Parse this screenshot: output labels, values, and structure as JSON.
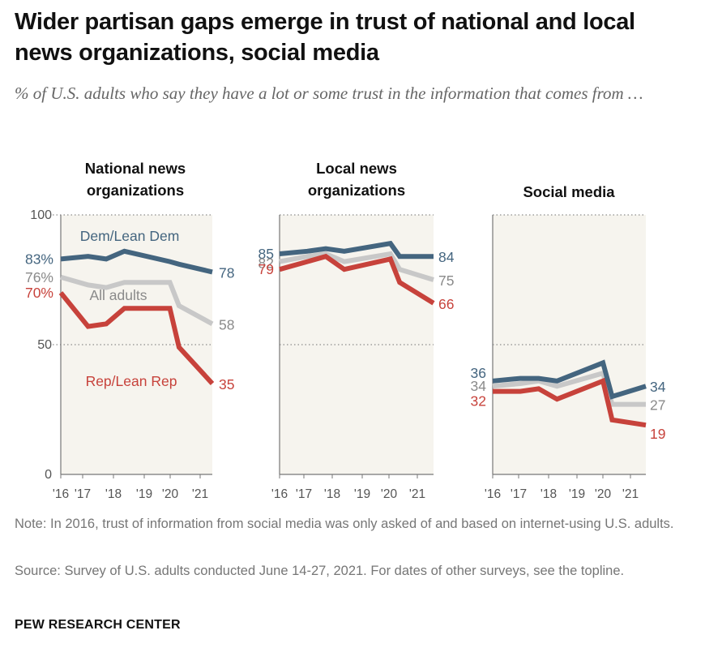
{
  "title": "Wider partisan gaps emerge in trust of national and local news organizations, social media",
  "subtitle": "% of U.S. adults who say they have a lot or some trust in the information that comes from …",
  "note": "Note: In 2016, trust of information from social media was only asked of and based on internet-using U.S. adults.",
  "source": "Source: Survey of U.S. adults conducted June 14-27, 2021. For dates of other surveys, see the topline.",
  "brand": "PEW RESEARCH CENTER",
  "colors": {
    "dem": "#44657f",
    "all": "#c8c8c8",
    "rep": "#c7423b",
    "panel_bg": "#f6f4ee",
    "grid": "#8c8c8c",
    "text": "#555555"
  },
  "chart_data": [
    {
      "type": "line",
      "title_lines": [
        "National news",
        "organizations"
      ],
      "x": [
        2016.0,
        2016.9,
        2017.5,
        2018.1,
        2019.6,
        2019.9,
        2021.0
      ],
      "x_ticks": [
        "'16",
        "'17",
        "'18",
        "'19",
        "'20",
        "'21"
      ],
      "ylim": [
        0,
        100
      ],
      "y_ticks": [
        "0",
        "50",
        "100"
      ],
      "series": [
        {
          "name": "Dem/Lean Dem",
          "key": "dem",
          "values": [
            83,
            84,
            83,
            86,
            82,
            81,
            78
          ],
          "start_label": "83%",
          "end_label": "78"
        },
        {
          "name": "All adults",
          "key": "all",
          "values": [
            76,
            73,
            72,
            74,
            74,
            65,
            58
          ],
          "start_label": "76%",
          "end_label": "58"
        },
        {
          "name": "Rep/Lean Rep",
          "key": "rep",
          "values": [
            70,
            57,
            58,
            64,
            64,
            49,
            35
          ],
          "start_label": "70%",
          "end_label": "35"
        }
      ]
    },
    {
      "type": "line",
      "title_lines": [
        "Local news",
        "organizations"
      ],
      "x": [
        2016.0,
        2016.9,
        2017.5,
        2018.1,
        2019.6,
        2019.9,
        2021.0
      ],
      "x_ticks": [
        "'16",
        "'17",
        "'18",
        "'19",
        "'20",
        "'21"
      ],
      "ylim": [
        0,
        100
      ],
      "series": [
        {
          "name": "Dem/Lean Dem",
          "key": "dem",
          "values": [
            85,
            86,
            87,
            86,
            89,
            84,
            84
          ],
          "start_label": "85",
          "end_label": "84"
        },
        {
          "name": "All adults",
          "key": "all",
          "values": [
            82,
            84,
            85,
            82,
            85,
            79,
            75
          ],
          "start_label": "82",
          "end_label": "75"
        },
        {
          "name": "Rep/Lean Rep",
          "key": "rep",
          "values": [
            79,
            82,
            84,
            79,
            83,
            74,
            66
          ],
          "start_label": "79",
          "end_label": "66"
        }
      ]
    },
    {
      "type": "line",
      "title_lines": [
        "Social media"
      ],
      "x": [
        2016.0,
        2016.9,
        2017.5,
        2018.1,
        2019.6,
        2019.9,
        2021.0
      ],
      "x_ticks": [
        "'16",
        "'17",
        "'18",
        "'19",
        "'20",
        "'21"
      ],
      "ylim": [
        0,
        100
      ],
      "series": [
        {
          "name": "Dem/Lean Dem",
          "key": "dem",
          "values": [
            36,
            37,
            37,
            36,
            43,
            30,
            34
          ],
          "start_label": "36",
          "end_label": "34"
        },
        {
          "name": "All adults",
          "key": "all",
          "values": [
            34,
            35,
            36,
            34,
            39,
            27,
            27
          ],
          "start_label": "34",
          "end_label": "27"
        },
        {
          "name": "Rep/Lean Rep",
          "key": "rep",
          "values": [
            32,
            32,
            33,
            29,
            36,
            21,
            19
          ],
          "start_label": "32",
          "end_label": "19"
        }
      ]
    }
  ]
}
